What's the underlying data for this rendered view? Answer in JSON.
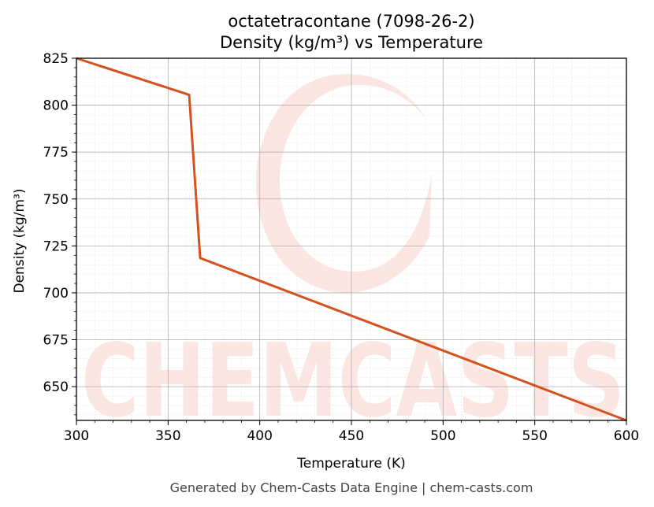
{
  "chart_data": {
    "type": "line",
    "title": "octatetracontane (7098-26-2)",
    "subtitle": "Density (kg/m³) vs Temperature",
    "xlabel": "Temperature (K)",
    "ylabel": "Density (kg/m³)",
    "xlim": [
      300,
      600
    ],
    "ylim": [
      632,
      825
    ],
    "x_ticks": [
      300,
      350,
      400,
      450,
      500,
      550,
      600
    ],
    "y_ticks": [
      650,
      675,
      700,
      725,
      750,
      775,
      800,
      825
    ],
    "grid": true,
    "line_color": "#d4521f",
    "series": [
      {
        "x": [
          300,
          361.5,
          367.5,
          600
        ],
        "values": [
          825,
          805.5,
          718.5,
          632
        ]
      }
    ]
  },
  "watermark": {
    "text": "CHEMCASTS",
    "color": "#f8c8bd"
  },
  "footer": "Generated by Chem-Casts Data Engine | chem-casts.com"
}
